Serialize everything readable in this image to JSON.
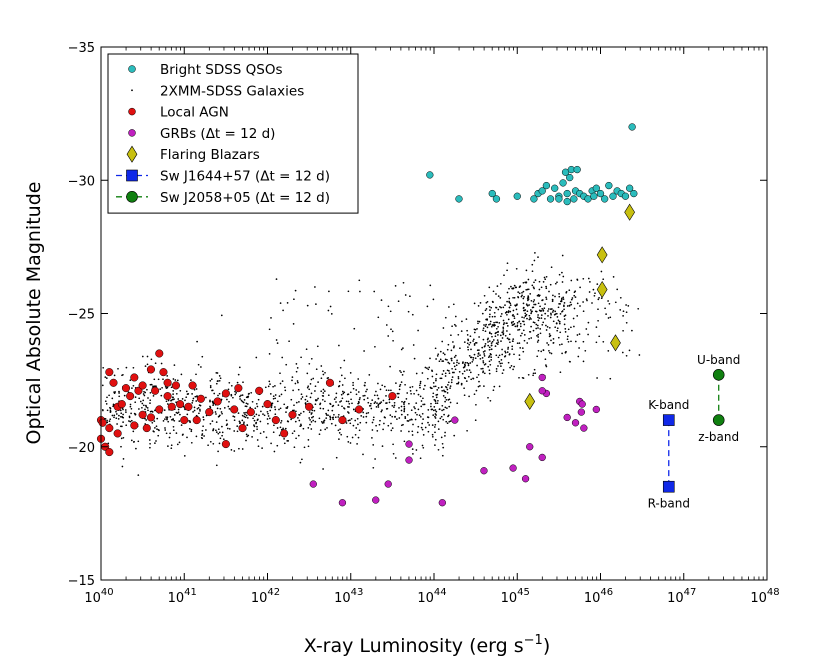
{
  "chart_data": {
    "type": "scatter",
    "xlabel": "X-ray Luminosity (erg s",
    "xlabel_sup": "−1",
    "xlabel_close": ")",
    "ylabel": "Optical Absolute Magnitude",
    "x_scale": "log",
    "xlim": [
      1e+40,
      1e+48
    ],
    "ylim": [
      -15,
      -35
    ],
    "x_ticks": [
      {
        "exp": 40,
        "base": "10",
        "sup": "40"
      },
      {
        "exp": 41,
        "base": "10",
        "sup": "41"
      },
      {
        "exp": 42,
        "base": "10",
        "sup": "42"
      },
      {
        "exp": 43,
        "base": "10",
        "sup": "43"
      },
      {
        "exp": 44,
        "base": "10",
        "sup": "44"
      },
      {
        "exp": 45,
        "base": "10",
        "sup": "45"
      },
      {
        "exp": 46,
        "base": "10",
        "sup": "46"
      },
      {
        "exp": 47,
        "base": "10",
        "sup": "47"
      },
      {
        "exp": 48,
        "base": "10",
        "sup": "48"
      }
    ],
    "y_ticks": [
      {
        "value": -35,
        "label": "−35"
      },
      {
        "value": -30,
        "label": "−30"
      },
      {
        "value": -25,
        "label": "−25"
      },
      {
        "value": -20,
        "label": "−20"
      },
      {
        "value": -15,
        "label": "−15"
      }
    ],
    "legend": {
      "position": "top-left",
      "entries": [
        {
          "label": "Bright SDSS QSOs",
          "marker": "circle-small",
          "color": "#2bbcbc"
        },
        {
          "label": "2XMM-SDSS Galaxies",
          "marker": "dot",
          "color": "#000000"
        },
        {
          "label": "Local AGN",
          "marker": "circle-small",
          "color": "#e01010"
        },
        {
          "label": "GRBs (Δt = 12 d)",
          "marker": "circle-small",
          "color": "#c020c0"
        },
        {
          "label": "Flaring Blazars",
          "marker": "diamond",
          "color": "#c8c010"
        },
        {
          "label": "Sw J1644+57 (Δt = 12 d)",
          "marker": "square-line",
          "color": "#1028e8"
        },
        {
          "label": "Sw J2058+05 (Δt = 12 d)",
          "marker": "circle-line",
          "color": "#108010"
        }
      ]
    },
    "colors": {
      "qso": "#2bbcbc",
      "galaxies": "#000000",
      "agn": "#e01010",
      "grb": "#c020c0",
      "blazar": "#c8c010",
      "sw1644": "#1028e8",
      "sw2058": "#108010"
    },
    "series": [
      {
        "name": "Bright SDSS QSOs",
        "points_log_x": [
          [
            43.95,
            -30.2
          ],
          [
            44.3,
            -29.3
          ],
          [
            44.7,
            -29.5
          ],
          [
            44.75,
            -29.3
          ],
          [
            45.0,
            -29.4
          ],
          [
            45.2,
            -29.3
          ],
          [
            45.25,
            -29.5
          ],
          [
            45.3,
            -29.6
          ],
          [
            45.35,
            -29.8
          ],
          [
            45.4,
            -29.3
          ],
          [
            45.45,
            -29.7
          ],
          [
            45.5,
            -29.4
          ],
          [
            45.55,
            -29.9
          ],
          [
            45.58,
            -30.3
          ],
          [
            45.6,
            -29.5
          ],
          [
            45.63,
            -30.1
          ],
          [
            45.65,
            -30.4
          ],
          [
            45.68,
            -29.3
          ],
          [
            45.7,
            -29.6
          ],
          [
            45.72,
            -30.4
          ],
          [
            45.75,
            -29.5
          ],
          [
            45.8,
            -29.4
          ],
          [
            45.85,
            -29.3
          ],
          [
            45.9,
            -29.6
          ],
          [
            45.92,
            -29.4
          ],
          [
            45.95,
            -29.7
          ],
          [
            46.0,
            -29.5
          ],
          [
            46.05,
            -29.3
          ],
          [
            46.1,
            -29.8
          ],
          [
            46.15,
            -29.4
          ],
          [
            46.2,
            -29.6
          ],
          [
            46.25,
            -29.5
          ],
          [
            46.3,
            -29.4
          ],
          [
            46.35,
            -29.7
          ],
          [
            46.4,
            -29.5
          ],
          [
            45.5,
            -29.3
          ],
          [
            45.6,
            -29.2
          ],
          [
            46.38,
            -32.0
          ]
        ]
      },
      {
        "name": "Local AGN",
        "points_log_x": [
          [
            40.0,
            -21.0
          ],
          [
            40.02,
            -20.9
          ],
          [
            40.05,
            -20.0
          ],
          [
            40.1,
            -19.8
          ],
          [
            40.1,
            -20.7
          ],
          [
            40.1,
            -22.8
          ],
          [
            40.15,
            -22.4
          ],
          [
            40.2,
            -20.5
          ],
          [
            40.2,
            -21.5
          ],
          [
            40.25,
            -21.6
          ],
          [
            40.3,
            -22.2
          ],
          [
            40.35,
            -21.9
          ],
          [
            40.4,
            -20.8
          ],
          [
            40.4,
            -22.6
          ],
          [
            40.45,
            -22.1
          ],
          [
            40.5,
            -21.2
          ],
          [
            40.5,
            -22.3
          ],
          [
            40.55,
            -20.7
          ],
          [
            40.6,
            -21.1
          ],
          [
            40.6,
            -22.9
          ],
          [
            40.65,
            -22.1
          ],
          [
            40.7,
            -23.5
          ],
          [
            40.75,
            -22.8
          ],
          [
            40.8,
            -21.9
          ],
          [
            40.8,
            -22.4
          ],
          [
            40.85,
            -21.5
          ],
          [
            40.9,
            -22.3
          ],
          [
            40.95,
            -21.6
          ],
          [
            41.0,
            -21.0
          ],
          [
            41.05,
            -21.5
          ],
          [
            41.1,
            -22.3
          ],
          [
            41.15,
            -21.0
          ],
          [
            41.2,
            -21.8
          ],
          [
            41.3,
            -21.3
          ],
          [
            41.4,
            -21.7
          ],
          [
            41.5,
            -22.0
          ],
          [
            41.6,
            -21.4
          ],
          [
            41.65,
            -22.2
          ],
          [
            41.7,
            -20.7
          ],
          [
            41.8,
            -21.3
          ],
          [
            41.9,
            -22.1
          ],
          [
            42.0,
            -21.6
          ],
          [
            42.1,
            -21.0
          ],
          [
            42.2,
            -20.5
          ],
          [
            42.3,
            -21.2
          ],
          [
            42.5,
            -21.5
          ],
          [
            42.75,
            -22.4
          ],
          [
            42.9,
            -21.0
          ],
          [
            43.1,
            -21.4
          ],
          [
            43.5,
            -21.9
          ],
          [
            40.0,
            -20.3
          ],
          [
            41.5,
            -20.1
          ],
          [
            40.7,
            -21.4
          ]
        ]
      },
      {
        "name": "GRBs (Δt = 12 d)",
        "points_log_x": [
          [
            42.55,
            -18.6
          ],
          [
            42.9,
            -17.9
          ],
          [
            43.3,
            -18.0
          ],
          [
            43.45,
            -18.6
          ],
          [
            43.7,
            -19.5
          ],
          [
            43.7,
            -20.1
          ],
          [
            44.1,
            -17.9
          ],
          [
            44.25,
            -21.0
          ],
          [
            44.6,
            -19.1
          ],
          [
            44.95,
            -19.2
          ],
          [
            45.1,
            -18.8
          ],
          [
            45.15,
            -20.0
          ],
          [
            45.3,
            -22.6
          ],
          [
            45.35,
            -22.0
          ],
          [
            45.6,
            -21.1
          ],
          [
            45.7,
            -20.9
          ],
          [
            45.75,
            -21.7
          ],
          [
            45.77,
            -21.3
          ],
          [
            45.78,
            -21.6
          ],
          [
            45.8,
            -20.7
          ],
          [
            45.95,
            -21.4
          ],
          [
            45.3,
            -19.6
          ],
          [
            45.3,
            -22.1
          ]
        ]
      },
      {
        "name": "Flaring Blazars",
        "points_log_x": [
          [
            45.15,
            -21.7
          ],
          [
            46.02,
            -27.2
          ],
          [
            46.02,
            -25.9
          ],
          [
            46.18,
            -23.9
          ],
          [
            46.35,
            -28.8
          ]
        ]
      },
      {
        "name": "Sw J1644+57 (Δt = 12 d)",
        "points_log_x": [
          [
            46.82,
            -21.0
          ],
          [
            46.82,
            -18.5
          ]
        ],
        "annotations": [
          "K-band",
          "R-band"
        ]
      },
      {
        "name": "Sw J2058+05 (Δt = 12 d)",
        "points_log_x": [
          [
            47.42,
            -22.7
          ],
          [
            47.42,
            -21.0
          ]
        ],
        "annotations": [
          "U-band",
          "z-band"
        ]
      }
    ],
    "galaxies_cloud": {
      "name": "2XMM-SDSS Galaxies",
      "description_of_distribution": "dense band from log L=40 to 44 around M=-21.5, rising to M=-25 near log L=45, extending to ~46.5",
      "seed": 7,
      "count": 1900
    }
  }
}
